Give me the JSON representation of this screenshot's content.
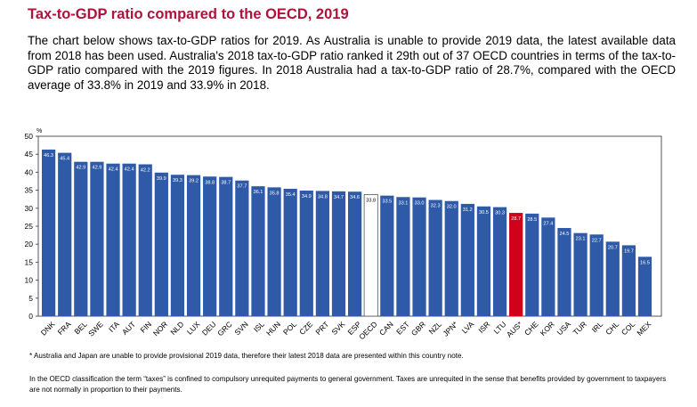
{
  "header": {
    "title": "Tax-to-GDP ratio compared to the OECD, 2019",
    "intro": "The chart below shows tax-to-GDP ratios for 2019. As Australia is unable to provide 2019 data, the latest available data from 2018 has been used. Australia's 2018 tax-to-GDP ratio ranked it 29th out of 37 OECD countries in terms of the tax-to-GDP ratio compared with the 2019 figures. In 2018 Australia had a tax-to-GDP ratio of 28.7%, compared with the OECD average of 33.8% in 2019 and 33.9% in 2018."
  },
  "chart_data": {
    "type": "bar",
    "ylabel": "%",
    "ylim": [
      0,
      50
    ],
    "yticks": [
      0,
      5,
      10,
      15,
      20,
      25,
      30,
      35,
      40,
      45,
      50
    ],
    "grid": false,
    "categories": [
      "DNK",
      "FRA",
      "BEL",
      "SWE",
      "ITA",
      "AUT",
      "FIN",
      "NOR",
      "NLD",
      "LUX",
      "DEU",
      "GRC",
      "SVN",
      "ISL",
      "HUN",
      "POL",
      "CZE",
      "PRT",
      "SVK",
      "ESP",
      "OECD",
      "CAN",
      "EST",
      "GBR",
      "NZL",
      "JPN*",
      "LVA",
      "ISR",
      "LTU",
      "AUS*",
      "CHE",
      "KOR",
      "USA",
      "TUR",
      "IRL",
      "CHL",
      "COL",
      "MEX"
    ],
    "values": [
      46.3,
      45.4,
      42.9,
      42.9,
      42.4,
      42.4,
      42.2,
      39.9,
      39.3,
      39.2,
      38.8,
      38.7,
      37.7,
      36.1,
      35.8,
      35.4,
      34.9,
      34.8,
      34.7,
      34.6,
      33.8,
      33.5,
      33.1,
      33.0,
      32.3,
      32.0,
      31.2,
      30.5,
      30.3,
      28.7,
      28.5,
      27.4,
      24.5,
      23.1,
      22.7,
      20.7,
      19.7,
      16.5
    ],
    "data_labels": [
      "46.3",
      "45.4",
      "42.9",
      "42.9",
      "42.4",
      "42.4",
      "42.2",
      "39.9",
      "39.3",
      "39.2",
      "38.8",
      "38.7",
      "37.7",
      "36.1",
      "35.8",
      "35.4",
      "34.9",
      "34.8",
      "34.7",
      "34.6",
      "33.8",
      "33.5",
      "33.1",
      "33.0",
      "32.3",
      "32.0",
      "31.2",
      "30.5",
      "30.3",
      "28.7",
      "28.5",
      "27.4",
      "24.5",
      "23.1",
      "22.7",
      "20.7",
      "19.7",
      "16.5"
    ],
    "highlight": {
      "OECD": "outline",
      "AUS*": "red"
    },
    "colors": {
      "bar": "#2e5aa8",
      "highlight": "#d0021b",
      "oecd_fill": "#ffffff",
      "oecd_stroke": "#555555",
      "frame": "#555555"
    }
  },
  "footnotes": {
    "note1": "* Australia and Japan are unable to provide provisional 2019 data, therefore their latest 2018 data are presented within this country note.",
    "note2": "In the OECD classification the term “taxes” is confined to compulsory unrequited payments to general government. Taxes are unrequited in the sense that benefits provided by government to taxpayers are not normally in proportion to their payments."
  }
}
